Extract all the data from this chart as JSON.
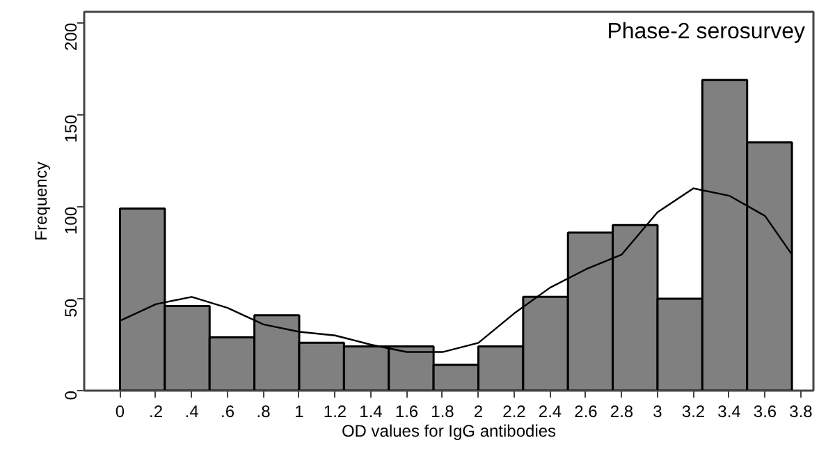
{
  "chart_data": {
    "type": "histogram",
    "title": "Phase-2 serosurvey",
    "xlabel": "OD values for IgG antibodies",
    "ylabel": "Frequency",
    "bins": [
      0,
      0.25,
      0.5,
      0.75,
      1,
      1.25,
      1.5,
      1.75,
      2,
      2.25,
      2.5,
      2.75,
      3,
      3.25,
      3.5,
      3.75
    ],
    "series": [
      {
        "color": "#808080",
        "values": [
          99,
          46,
          29,
          41,
          26,
          24,
          24,
          14,
          24,
          51,
          86,
          90,
          50,
          169,
          135
        ]
      },
      {
        "type": "line",
        "color": "#000000",
        "x": [
          0,
          0.2,
          0.4,
          0.6,
          0.8,
          1,
          1.2,
          1.4,
          1.6,
          1.8,
          2,
          2.2,
          2.4,
          2.6,
          2.8,
          3,
          3.2,
          3.4,
          3.6,
          3.75
        ],
        "values": [
          38,
          47,
          51,
          45,
          36,
          32,
          30,
          25,
          21,
          21,
          26,
          42,
          56,
          66,
          74,
          97,
          110,
          106,
          95,
          74
        ]
      }
    ],
    "xlim": [
      -0.2,
      3.87
    ],
    "ylim": [
      0,
      206
    ],
    "xticks": [
      0,
      {
        "value": 0.2,
        "label": ".2"
      },
      {
        "value": 0.4,
        "label": ".4"
      },
      {
        "value": 0.6,
        "label": ".6"
      },
      {
        "value": 0.8,
        "label": ".8"
      },
      1,
      1.2,
      1.4,
      1.6,
      1.8,
      2,
      2.2,
      2.4,
      2.6,
      2.8,
      3,
      3.2,
      3.4,
      3.6,
      3.8
    ],
    "yticks": [
      0,
      50,
      100,
      150,
      200
    ],
    "grid": false,
    "marker": "none",
    "line_style": "solid"
  }
}
